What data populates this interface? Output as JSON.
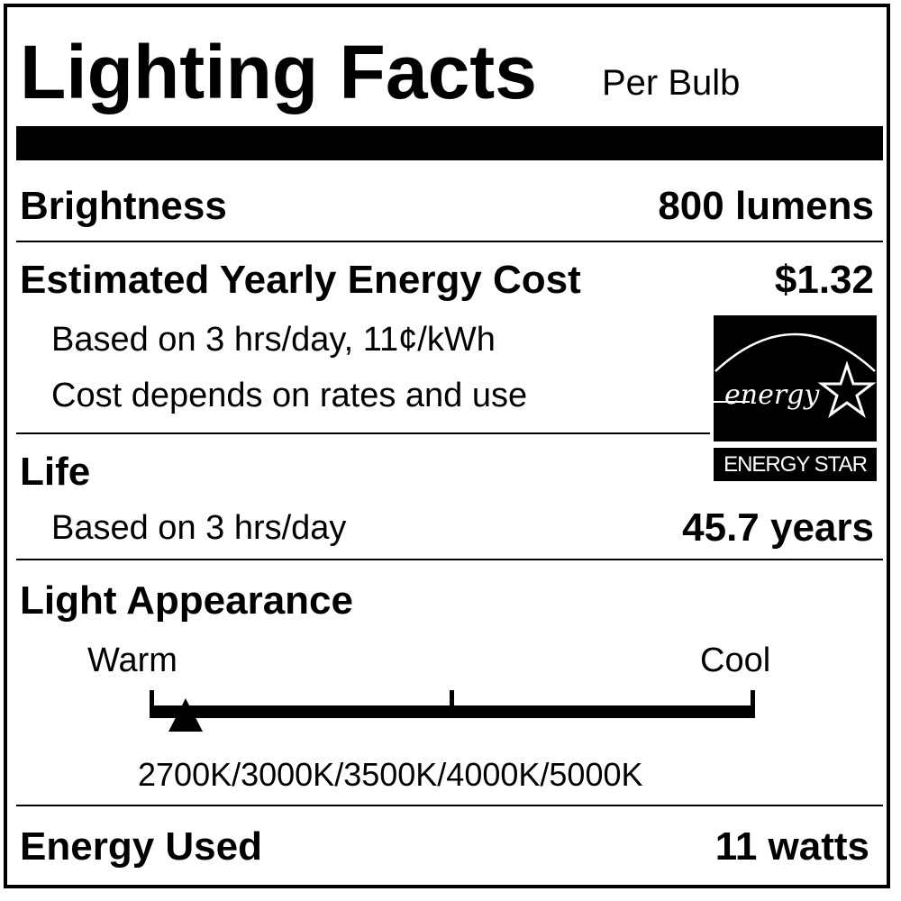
{
  "title": "Lighting Facts",
  "title_suffix": "Per Bulb",
  "brightness": {
    "label": "Brightness",
    "value": "800 lumens"
  },
  "energy_cost": {
    "label": "Estimated Yearly Energy Cost",
    "value": "$1.32",
    "note1": "Based on 3 hrs/day, 11¢/kWh",
    "note2": "Cost depends on rates and use"
  },
  "life": {
    "label": "Life",
    "note": "Based on 3 hrs/day",
    "value": "45.7 years"
  },
  "light_appearance": {
    "label": "Light Appearance",
    "warm_label": "Warm",
    "cool_label": "Cool",
    "scale_text": "2700K/3000K/3500K/4000K/5000K",
    "marker_fraction": 0.06
  },
  "energy_used": {
    "label": "Energy Used",
    "value": "11 watts"
  },
  "energy_star": {
    "logo_script": "energy",
    "label": "ENERGY STAR",
    "icon": "energy-star-logo"
  }
}
